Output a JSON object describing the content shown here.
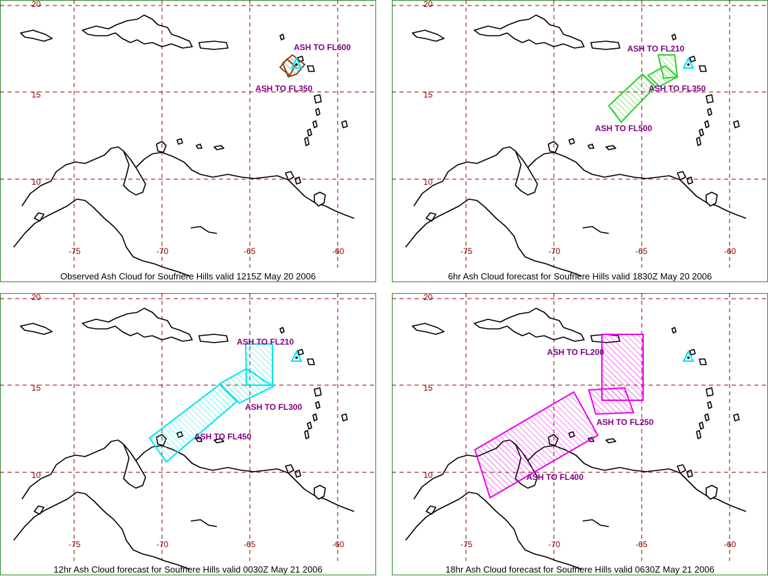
{
  "map": {
    "lon_ticks": [
      "-75",
      "-70",
      "-65",
      "-60"
    ],
    "lat_ticks": [
      "20",
      "15",
      "10"
    ],
    "volcano_icon": "triangle-volcano-icon"
  },
  "panels": [
    {
      "title": "Observed Ash Cloud for Soufriere  Hills valid 1215Z May 20 2006",
      "color": "#8b4513",
      "labels": [
        "ASH TO FL600",
        "ASH TO FL350"
      ]
    },
    {
      "title": "6hr Ash Cloud forecast for Soufriere  Hills valid 1830Z May 20 2006",
      "color": "#33cc33",
      "labels": [
        "ASH TO FL210",
        "ASH TO FL350",
        "ASH TO FL500"
      ]
    },
    {
      "title": "12hr Ash Cloud forecast for Soufriere  Hills valid 0030Z May 21 2006",
      "color": "#00e5ee",
      "labels": [
        "ASH TO FL210",
        "ASH TO FL300",
        "ASH TO FL450"
      ]
    },
    {
      "title": "18hr Ash Cloud forecast for Soufriere  Hills valid 0630Z May 21 2006",
      "color": "#ee00ee",
      "labels": [
        "ASH TO FL200",
        "ASH TO FL250",
        "ASH TO FL400"
      ]
    }
  ]
}
